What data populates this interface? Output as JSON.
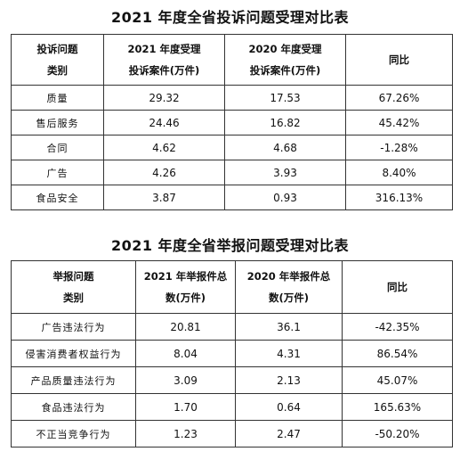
{
  "table1": {
    "title": "2021 年度全省投诉问题受理对比表",
    "headers": [
      [
        "投诉问题",
        "类别"
      ],
      [
        "2021 年度受理",
        "投诉案件(万件)"
      ],
      [
        "2020 年度受理",
        "投诉案件(万件)"
      ],
      [
        "同比"
      ]
    ],
    "rows": [
      [
        "质量",
        "29.32",
        "17.53",
        "67.26%"
      ],
      [
        "售后服务",
        "24.46",
        "16.82",
        "45.42%"
      ],
      [
        "合同",
        "4.62",
        "4.68",
        "-1.28%"
      ],
      [
        "广告",
        "4.26",
        "3.93",
        "8.40%"
      ],
      [
        "食品安全",
        "3.87",
        "0.93",
        "316.13%"
      ]
    ]
  },
  "table2": {
    "title": "2021 年度全省举报问题受理对比表",
    "headers": [
      [
        "举报问题",
        "类别"
      ],
      [
        "2021 年举报件总",
        "数(万件)"
      ],
      [
        "2020 年举报件总",
        "数(万件)"
      ],
      [
        "同比"
      ]
    ],
    "rows": [
      [
        "广告违法行为",
        "20.81",
        "36.1",
        "-42.35%"
      ],
      [
        "侵害消费者权益行为",
        "8.04",
        "4.31",
        "86.54%"
      ],
      [
        "产品质量违法行为",
        "3.09",
        "2.13",
        "45.07%"
      ],
      [
        "食品违法行为",
        "1.70",
        "0.64",
        "165.63%"
      ],
      [
        "不正当竞争行为",
        "1.23",
        "2.47",
        "-50.20%"
      ]
    ]
  }
}
